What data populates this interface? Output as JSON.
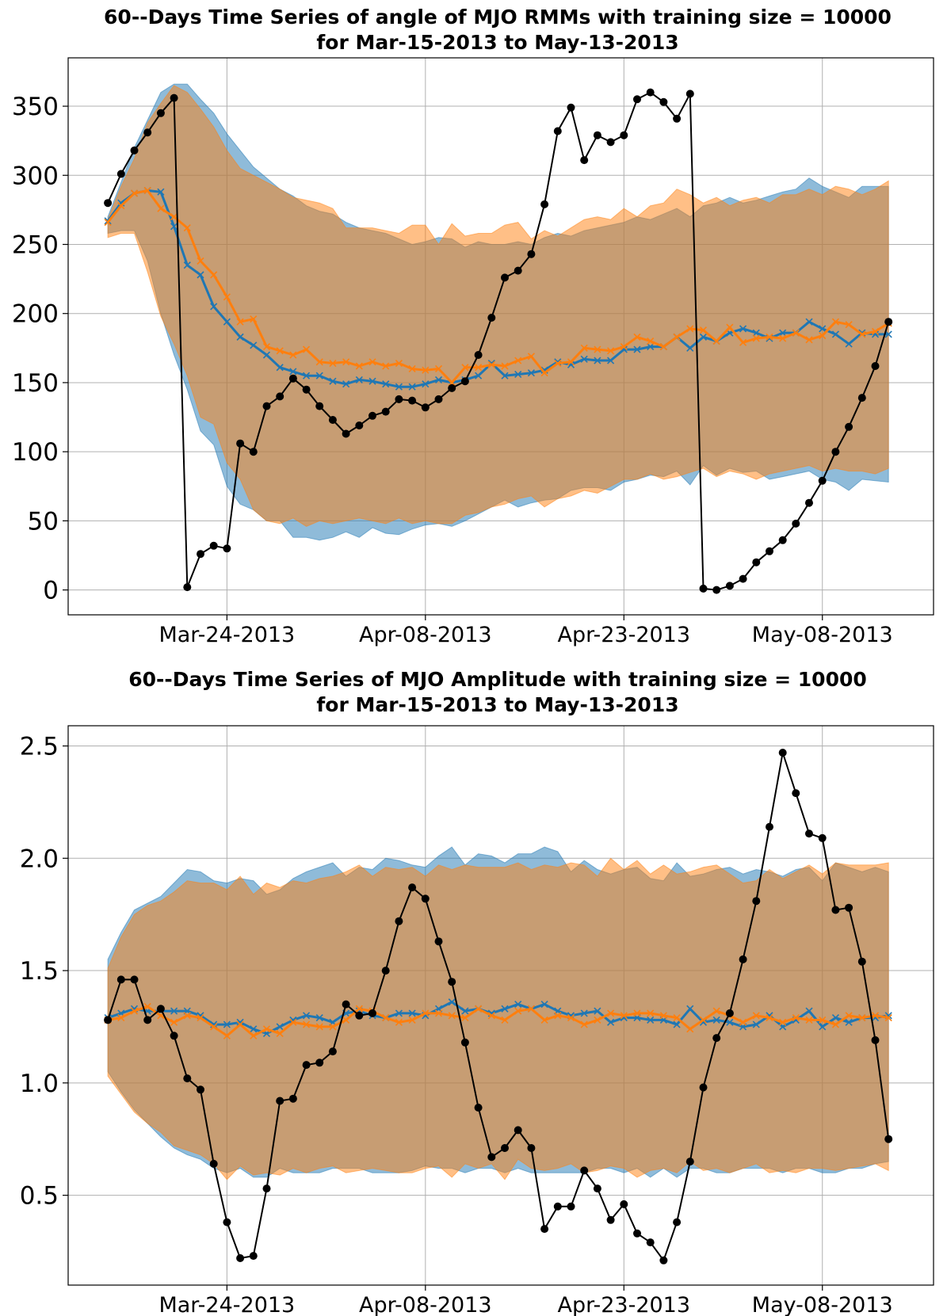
{
  "chart_data": [
    {
      "type": "line",
      "title": "60--Days Time Series of angle of MJO RMMs with training size = 10000",
      "subtitle": "for Mar-15-2013 to May-13-2013",
      "xlabel": "",
      "ylabel": "",
      "x_ticks": [
        "Mar-24-2013",
        "Apr-08-2013",
        "Apr-23-2013",
        "May-08-2013"
      ],
      "x_tick_days": [
        9,
        24,
        39,
        54
      ],
      "y_ticks": [
        "0",
        "50",
        "100",
        "150",
        "200",
        "250",
        "300",
        "350"
      ],
      "y_tick_values": [
        0,
        50,
        100,
        150,
        200,
        250,
        300,
        350
      ],
      "ylim": [
        -18,
        385
      ],
      "xlim": [
        -3,
        62.4
      ],
      "grid": true,
      "colors": {
        "blue": "#1f77b4",
        "orange": "#ff7f0e",
        "observed": "#000000"
      },
      "observed": [
        280,
        301,
        318,
        331,
        345,
        356,
        2,
        26,
        32,
        30,
        106,
        100,
        133,
        140,
        153,
        145,
        133,
        123,
        113,
        119,
        126,
        129,
        138,
        137,
        132,
        138,
        146,
        151,
        170,
        197,
        226,
        231,
        243,
        279,
        332,
        349,
        311,
        329,
        324,
        329,
        355,
        360,
        353,
        341,
        359,
        1,
        0,
        3,
        8,
        20,
        28,
        36,
        48,
        63,
        79,
        100,
        118,
        139,
        162,
        194
      ],
      "blue_mean": [
        267,
        280,
        287,
        289,
        288,
        263,
        235,
        228,
        205,
        194,
        183,
        177,
        170,
        161,
        158,
        155,
        155,
        151,
        149,
        152,
        151,
        149,
        147,
        147,
        149,
        152,
        150,
        152,
        155,
        164,
        155,
        156,
        157,
        159,
        165,
        163,
        167,
        166,
        166,
        174,
        174,
        176,
        176,
        183,
        175,
        183,
        180,
        186,
        189,
        186,
        182,
        186,
        186,
        194,
        189,
        185,
        178,
        186,
        185,
        185
      ],
      "blue_low": [
        258,
        260,
        260,
        238,
        200,
        170,
        145,
        115,
        105,
        75,
        62,
        58,
        50,
        50,
        38,
        38,
        36,
        38,
        42,
        38,
        45,
        41,
        40,
        44,
        47,
        48,
        46,
        50,
        55,
        60,
        65,
        60,
        63,
        65,
        66,
        72,
        74,
        74,
        72,
        78,
        80,
        83,
        82,
        86,
        76,
        90,
        83,
        88,
        85,
        86,
        80,
        82,
        84,
        86,
        80,
        78,
        72,
        80,
        79,
        78
      ],
      "blue_high": [
        270,
        295,
        320,
        340,
        360,
        366,
        366,
        355,
        345,
        330,
        318,
        306,
        298,
        290,
        285,
        278,
        274,
        272,
        266,
        262,
        260,
        258,
        254,
        250,
        252,
        255,
        254,
        248,
        252,
        250,
        250,
        252,
        250,
        255,
        258,
        256,
        260,
        262,
        264,
        266,
        270,
        268,
        272,
        276,
        270,
        278,
        280,
        284,
        280,
        282,
        285,
        288,
        290,
        298,
        292,
        288,
        284,
        292,
        292,
        292
      ],
      "orange_mean": [
        266,
        278,
        287,
        289,
        276,
        270,
        262,
        238,
        228,
        212,
        194,
        196,
        176,
        173,
        170,
        174,
        165,
        164,
        165,
        162,
        165,
        162,
        164,
        160,
        159,
        160,
        150,
        161,
        161,
        163,
        162,
        166,
        169,
        157,
        164,
        165,
        175,
        174,
        173,
        176,
        183,
        180,
        176,
        183,
        189,
        188,
        180,
        190,
        179,
        182,
        183,
        182,
        186,
        181,
        184,
        194,
        192,
        185,
        187,
        193
      ],
      "orange_low": [
        255,
        258,
        258,
        230,
        198,
        178,
        155,
        125,
        120,
        92,
        80,
        58,
        50,
        48,
        52,
        46,
        50,
        48,
        50,
        52,
        50,
        48,
        52,
        48,
        50,
        48,
        48,
        54,
        56,
        60,
        62,
        66,
        68,
        60,
        66,
        68,
        72,
        70,
        75,
        80,
        80,
        84,
        80,
        82,
        85,
        88,
        82,
        86,
        84,
        80,
        84,
        86,
        88,
        90,
        86,
        88,
        86,
        86,
        84,
        88
      ],
      "orange_high": [
        268,
        292,
        312,
        338,
        352,
        365,
        360,
        348,
        335,
        318,
        305,
        300,
        295,
        290,
        284,
        282,
        280,
        276,
        262,
        262,
        262,
        260,
        258,
        264,
        264,
        250,
        265,
        256,
        258,
        258,
        264,
        266,
        254,
        260,
        256,
        262,
        268,
        270,
        268,
        276,
        270,
        278,
        280,
        290,
        286,
        280,
        284,
        278,
        282,
        284,
        280,
        286,
        286,
        290,
        286,
        292,
        290,
        286,
        290,
        296
      ]
    },
    {
      "type": "line",
      "title": "60--Days Time Series of MJO Amplitude with training size = 10000",
      "subtitle": "for Mar-15-2013 to May-13-2013",
      "xlabel": "",
      "ylabel": "",
      "x_ticks": [
        "Mar-24-2013",
        "Apr-08-2013",
        "Apr-23-2013",
        "May-08-2013"
      ],
      "x_tick_days": [
        9,
        24,
        39,
        54
      ],
      "y_ticks": [
        "0.5",
        "1.0",
        "1.5",
        "2.0",
        "2.5"
      ],
      "y_tick_values": [
        0.5,
        1.0,
        1.5,
        2.0,
        2.5
      ],
      "ylim": [
        0.1,
        2.59
      ],
      "xlim": [
        -3,
        62.4
      ],
      "grid": true,
      "colors": {
        "blue": "#1f77b4",
        "orange": "#ff7f0e",
        "observed": "#000000"
      },
      "observed": [
        1.28,
        1.46,
        1.46,
        1.28,
        1.33,
        1.21,
        1.02,
        0.97,
        0.64,
        0.38,
        0.22,
        0.23,
        0.53,
        0.92,
        0.93,
        1.08,
        1.09,
        1.14,
        1.35,
        1.3,
        1.31,
        1.5,
        1.72,
        1.87,
        1.82,
        1.63,
        1.45,
        1.18,
        0.89,
        0.67,
        0.71,
        0.79,
        0.71,
        0.35,
        0.45,
        0.45,
        0.61,
        0.53,
        0.39,
        0.46,
        0.33,
        0.29,
        0.21,
        0.38,
        0.65,
        0.98,
        1.2,
        1.31,
        1.55,
        1.81,
        2.14,
        2.47,
        2.29,
        2.11,
        2.09,
        1.77,
        1.78,
        1.54,
        1.19,
        0.75
      ],
      "blue_mean": [
        1.29,
        1.31,
        1.33,
        1.32,
        1.32,
        1.32,
        1.32,
        1.3,
        1.26,
        1.26,
        1.27,
        1.24,
        1.22,
        1.25,
        1.28,
        1.3,
        1.29,
        1.27,
        1.31,
        1.32,
        1.3,
        1.29,
        1.31,
        1.31,
        1.3,
        1.33,
        1.36,
        1.32,
        1.33,
        1.31,
        1.33,
        1.35,
        1.33,
        1.35,
        1.32,
        1.3,
        1.31,
        1.32,
        1.27,
        1.29,
        1.29,
        1.28,
        1.28,
        1.26,
        1.33,
        1.27,
        1.28,
        1.27,
        1.25,
        1.26,
        1.3,
        1.25,
        1.28,
        1.32,
        1.25,
        1.29,
        1.27,
        1.29,
        1.29,
        1.3
      ],
      "blue_low": [
        1.05,
        0.96,
        0.88,
        0.82,
        0.76,
        0.71,
        0.68,
        0.66,
        0.62,
        0.6,
        0.62,
        0.58,
        0.58,
        0.62,
        0.6,
        0.6,
        0.6,
        0.62,
        0.62,
        0.62,
        0.6,
        0.6,
        0.6,
        0.61,
        0.63,
        0.62,
        0.62,
        0.6,
        0.62,
        0.62,
        0.6,
        0.62,
        0.6,
        0.6,
        0.6,
        0.6,
        0.6,
        0.62,
        0.62,
        0.6,
        0.62,
        0.58,
        0.62,
        0.58,
        0.62,
        0.62,
        0.6,
        0.6,
        0.62,
        0.62,
        0.62,
        0.6,
        0.62,
        0.62,
        0.6,
        0.6,
        0.62,
        0.62,
        0.64,
        0.65
      ],
      "blue_high": [
        1.55,
        1.67,
        1.77,
        1.8,
        1.83,
        1.89,
        1.95,
        1.94,
        1.9,
        1.89,
        1.91,
        1.9,
        1.84,
        1.86,
        1.91,
        1.94,
        1.96,
        1.98,
        1.92,
        1.96,
        1.95,
        2.0,
        1.99,
        1.97,
        1.96,
        2.01,
        2.05,
        1.97,
        2.02,
        2.01,
        1.98,
        2.02,
        2.02,
        2.05,
        2.03,
        1.94,
        1.99,
        1.95,
        1.93,
        1.95,
        1.96,
        1.91,
        1.9,
        1.98,
        1.92,
        1.93,
        1.95,
        1.96,
        1.93,
        1.95,
        1.94,
        1.92,
        1.95,
        1.96,
        1.9,
        1.98,
        1.96,
        1.94,
        1.96,
        1.94
      ],
      "orange_mean": [
        1.28,
        1.29,
        1.32,
        1.34,
        1.3,
        1.27,
        1.3,
        1.29,
        1.25,
        1.21,
        1.26,
        1.21,
        1.24,
        1.22,
        1.27,
        1.26,
        1.25,
        1.25,
        1.28,
        1.33,
        1.32,
        1.29,
        1.27,
        1.28,
        1.31,
        1.31,
        1.3,
        1.29,
        1.33,
        1.3,
        1.28,
        1.32,
        1.33,
        1.28,
        1.3,
        1.29,
        1.26,
        1.28,
        1.31,
        1.3,
        1.31,
        1.31,
        1.3,
        1.29,
        1.24,
        1.28,
        1.32,
        1.3,
        1.27,
        1.3,
        1.29,
        1.27,
        1.29,
        1.28,
        1.28,
        1.26,
        1.3,
        1.29,
        1.3,
        1.29
      ],
      "orange_low": [
        1.03,
        0.95,
        0.87,
        0.82,
        0.78,
        0.72,
        0.7,
        0.68,
        0.64,
        0.57,
        0.63,
        0.59,
        0.6,
        0.59,
        0.62,
        0.6,
        0.62,
        0.63,
        0.6,
        0.61,
        0.62,
        0.61,
        0.6,
        0.6,
        0.62,
        0.63,
        0.58,
        0.64,
        0.62,
        0.64,
        0.57,
        0.66,
        0.62,
        0.61,
        0.62,
        0.64,
        0.6,
        0.61,
        0.63,
        0.62,
        0.58,
        0.61,
        0.62,
        0.6,
        0.65,
        0.61,
        0.62,
        0.6,
        0.62,
        0.64,
        0.6,
        0.61,
        0.6,
        0.62,
        0.62,
        0.61,
        0.62,
        0.63,
        0.64,
        0.61
      ],
      "orange_high": [
        1.51,
        1.65,
        1.75,
        1.79,
        1.81,
        1.85,
        1.9,
        1.89,
        1.89,
        1.86,
        1.92,
        1.84,
        1.89,
        1.87,
        1.9,
        1.89,
        1.91,
        1.92,
        1.94,
        1.97,
        1.92,
        1.96,
        1.95,
        1.96,
        1.92,
        1.97,
        1.95,
        1.97,
        1.96,
        1.96,
        1.96,
        1.98,
        1.95,
        1.97,
        1.96,
        1.98,
        1.97,
        1.92,
        2.0,
        1.95,
        1.99,
        1.93,
        1.97,
        1.93,
        1.94,
        1.96,
        1.97,
        1.93,
        1.89,
        1.9,
        1.95,
        1.91,
        1.94,
        1.97,
        1.93,
        1.98,
        1.97,
        1.97,
        1.97,
        1.98
      ]
    }
  ]
}
